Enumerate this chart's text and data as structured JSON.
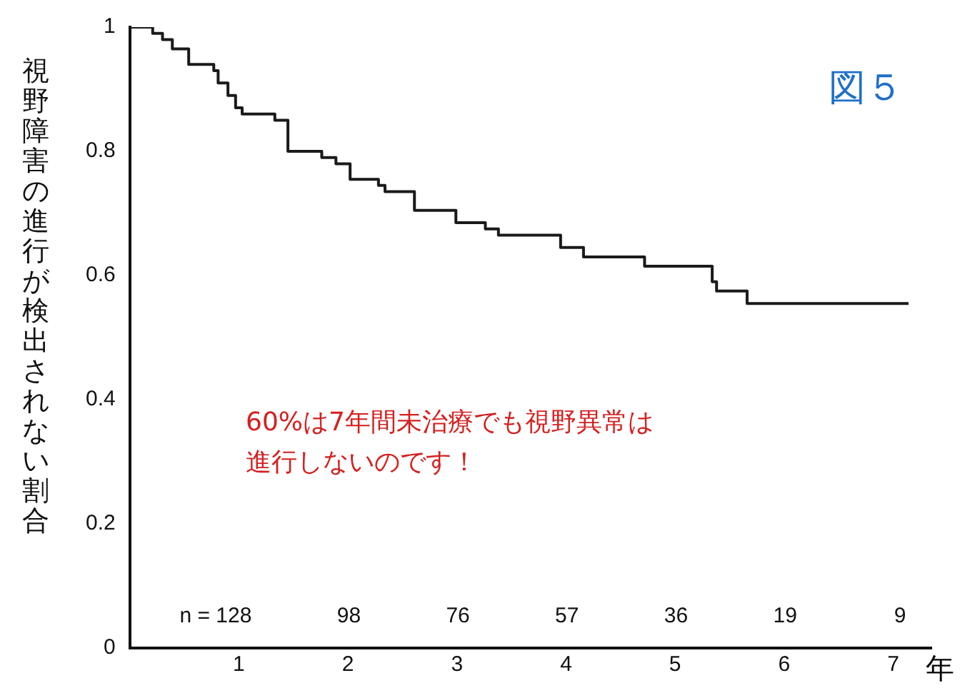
{
  "chart_data": {
    "type": "step",
    "title": "図５",
    "ylabel": "視野障害の進行が検出されない割合",
    "xlabel": "年",
    "x": [
      0,
      0.21,
      0.3,
      0.39,
      0.54,
      0.77,
      0.81,
      0.9,
      0.97,
      1.03,
      1.33,
      1.45,
      1.76,
      1.89,
      2.02,
      2.28,
      2.34,
      2.61,
      2.99,
      3.26,
      3.38,
      3.95,
      4.16,
      4.72,
      5.34,
      5.38,
      5.66,
      7.14
    ],
    "series": [
      {
        "color": "#1a1a1a",
        "values": [
          1,
          0.99,
          0.98,
          0.965,
          0.94,
          0.93,
          0.91,
          0.89,
          0.87,
          0.86,
          0.85,
          0.8,
          0.79,
          0.78,
          0.755,
          0.745,
          0.735,
          0.705,
          0.685,
          0.675,
          0.665,
          0.645,
          0.63,
          0.615,
          0.59,
          0.575,
          0.555,
          0.555
        ]
      }
    ],
    "xlim": [
      0,
      7.35
    ],
    "xticks": [
      1,
      2,
      3,
      4,
      5,
      6,
      7
    ],
    "ylim": [
      0,
      1
    ],
    "yticks": [
      0,
      0.2,
      0.4,
      0.6,
      0.8,
      1
    ],
    "grid": false,
    "legend": false,
    "marker": "none",
    "line_style": "solid",
    "annotations": [
      "60%は7年間未治療でも視野異常は進行しないのです！",
      "n = 128",
      "98",
      "76",
      "57",
      "36",
      "19",
      "9"
    ]
  }
}
